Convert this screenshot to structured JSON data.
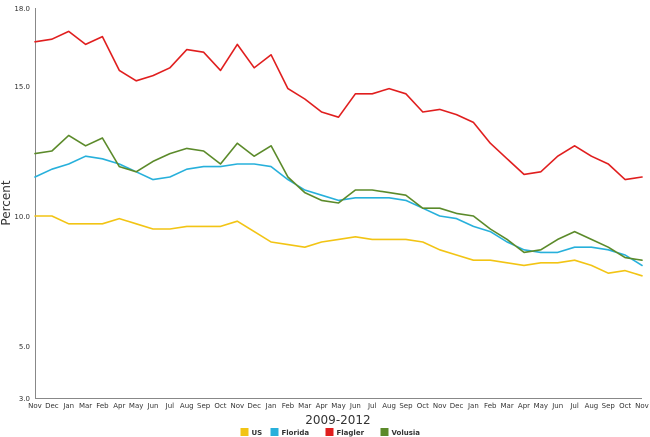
{
  "chart_data": {
    "type": "line",
    "title": "",
    "xlabel": "2009-2012",
    "ylabel": "Percent",
    "ylim": [
      3.0,
      18.0
    ],
    "yticks": [
      "3.0",
      "5.0",
      "10.0",
      "15.0",
      "18.0"
    ],
    "grid": false,
    "legend_position": "bottom",
    "categories": [
      "Nov",
      "Dec",
      "Jan",
      "Mar",
      "Feb",
      "Apr",
      "May",
      "Jun",
      "Jul",
      "Aug",
      "Sep",
      "Oct",
      "Nov",
      "Dec",
      "Jan",
      "Feb",
      "Mar",
      "Apr",
      "May",
      "Jun",
      "Jul",
      "Aug",
      "Sep",
      "Oct",
      "Nov",
      "Dec",
      "Jan",
      "Feb",
      "Mar",
      "Apr",
      "May",
      "Jun",
      "Jul",
      "Aug",
      "Sep",
      "Oct",
      "Nov"
    ],
    "series": [
      {
        "name": "US",
        "color": "#f2c414",
        "values": [
          10.0,
          10.0,
          9.7,
          9.7,
          9.7,
          9.9,
          9.7,
          9.5,
          9.5,
          9.6,
          9.6,
          9.6,
          9.8,
          9.4,
          9.0,
          8.9,
          8.8,
          9.0,
          9.1,
          9.2,
          9.1,
          9.1,
          9.1,
          9.0,
          8.7,
          8.5,
          8.3,
          8.3,
          8.2,
          8.1,
          8.2,
          8.2,
          8.3,
          8.1,
          7.8,
          7.9,
          7.7
        ]
      },
      {
        "name": "Florida",
        "color": "#27b0db",
        "values": [
          11.5,
          11.8,
          12.0,
          12.3,
          12.2,
          12.0,
          11.7,
          11.4,
          11.5,
          11.8,
          11.9,
          11.9,
          12.0,
          12.0,
          11.9,
          11.4,
          11.0,
          10.8,
          10.6,
          10.7,
          10.7,
          10.7,
          10.6,
          10.3,
          10.0,
          9.9,
          9.6,
          9.4,
          9.0,
          8.7,
          8.6,
          8.6,
          8.8,
          8.8,
          8.7,
          8.5,
          8.1
        ]
      },
      {
        "name": "Flagler",
        "color": "#e01e1e",
        "values": [
          16.7,
          16.8,
          17.1,
          16.6,
          16.9,
          15.6,
          15.2,
          15.4,
          15.7,
          16.4,
          16.3,
          15.6,
          16.6,
          15.7,
          16.2,
          14.9,
          14.5,
          14.0,
          13.8,
          14.7,
          14.7,
          14.9,
          14.7,
          14.0,
          14.1,
          13.9,
          13.6,
          12.8,
          12.2,
          11.6,
          11.7,
          12.3,
          12.7,
          12.3,
          12.0,
          11.4,
          11.5
        ]
      },
      {
        "name": "Volusia",
        "color": "#5b8a2a",
        "values": [
          12.4,
          12.5,
          13.1,
          12.7,
          13.0,
          11.9,
          11.7,
          12.1,
          12.4,
          12.6,
          12.5,
          12.0,
          12.8,
          12.3,
          12.7,
          11.5,
          10.9,
          10.6,
          10.5,
          11.0,
          11.0,
          10.9,
          10.8,
          10.3,
          10.3,
          10.1,
          10.0,
          9.5,
          9.1,
          8.6,
          8.7,
          9.1,
          9.4,
          9.1,
          8.8,
          8.4,
          8.3
        ]
      }
    ]
  }
}
